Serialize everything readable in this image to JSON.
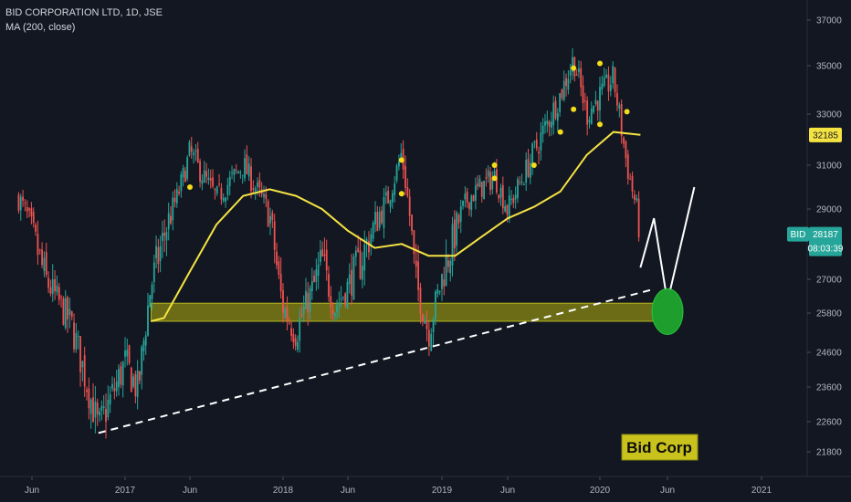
{
  "legend": {
    "symbol_line": "BID CORPORATION LTD, 1D, JSE",
    "indicator_line": "MA (200, close)"
  },
  "colors": {
    "background": "#131722",
    "up": "#26a69a",
    "down": "#ef5350",
    "ma": "#f5e342",
    "support_zone": "#8a8a12",
    "projection": "#ffffff",
    "target_circle": "#1e9e2c",
    "note_box": "#c9c21c",
    "last_price_tag": "#26a69a"
  },
  "chart_data": {
    "type": "candlestick",
    "title": "BID CORPORATION LTD, 1D, JSE",
    "x_ticks": [
      "Jun",
      "2017",
      "Jun",
      "2018",
      "Jun",
      "2019",
      "Jun",
      "2020",
      "Jun",
      "2021"
    ],
    "x_range": [
      "2016-05",
      "2021-03"
    ],
    "y_ticks": [
      21800,
      22600,
      23600,
      24600,
      25800,
      27000,
      28000,
      29000,
      31000,
      33000,
      35000,
      37000
    ],
    "y_range": [
      21200,
      37800
    ],
    "price_anchors": [
      {
        "date": "2016-05",
        "close": 29500
      },
      {
        "date": "2016-07",
        "close": 27000
      },
      {
        "date": "2016-09",
        "close": 25400
      },
      {
        "date": "2016-11",
        "close": 22400
      },
      {
        "date": "2017-01",
        "close": 24300
      },
      {
        "date": "2017-02",
        "close": 23500
      },
      {
        "date": "2017-03",
        "close": 26800
      },
      {
        "date": "2017-05",
        "close": 29500
      },
      {
        "date": "2017-06",
        "close": 31500
      },
      {
        "date": "2017-08",
        "close": 29500
      },
      {
        "date": "2017-10",
        "close": 31000
      },
      {
        "date": "2017-12",
        "close": 28800
      },
      {
        "date": "2018-01",
        "close": 26000
      },
      {
        "date": "2018-02",
        "close": 25200
      },
      {
        "date": "2018-04",
        "close": 27500
      },
      {
        "date": "2018-05",
        "close": 26000
      },
      {
        "date": "2018-07",
        "close": 27500
      },
      {
        "date": "2018-09",
        "close": 29500
      },
      {
        "date": "2018-10",
        "close": 31500
      },
      {
        "date": "2018-11",
        "close": 27000
      },
      {
        "date": "2018-12",
        "close": 25200
      },
      {
        "date": "2019-01",
        "close": 27000
      },
      {
        "date": "2019-03",
        "close": 29500
      },
      {
        "date": "2019-05",
        "close": 30500
      },
      {
        "date": "2019-06",
        "close": 29000
      },
      {
        "date": "2019-08",
        "close": 31500
      },
      {
        "date": "2019-10",
        "close": 33800
      },
      {
        "date": "2019-11",
        "close": 35300
      },
      {
        "date": "2019-12",
        "close": 33000
      },
      {
        "date": "2020-02",
        "close": 34500
      },
      {
        "date": "2020-03",
        "close": 31000
      },
      {
        "date": "2020-04",
        "close": 28187
      }
    ],
    "moving_average": {
      "name": "MA (200, close)",
      "points": [
        {
          "date": "2017-03",
          "value": 25550
        },
        {
          "date": "2017-04",
          "value": 25650
        },
        {
          "date": "2017-06",
          "value": 27200
        },
        {
          "date": "2017-08",
          "value": 28500
        },
        {
          "date": "2017-10",
          "value": 29600
        },
        {
          "date": "2017-12",
          "value": 29900
        },
        {
          "date": "2018-02",
          "value": 29600
        },
        {
          "date": "2018-04",
          "value": 29000
        },
        {
          "date": "2018-06",
          "value": 28300
        },
        {
          "date": "2018-08",
          "value": 27800
        },
        {
          "date": "2018-10",
          "value": 27900
        },
        {
          "date": "2018-12",
          "value": 27600
        },
        {
          "date": "2019-02",
          "value": 27600
        },
        {
          "date": "2019-04",
          "value": 28100
        },
        {
          "date": "2019-06",
          "value": 28700
        },
        {
          "date": "2019-08",
          "value": 29100
        },
        {
          "date": "2019-10",
          "value": 29800
        },
        {
          "date": "2019-12",
          "value": 31400
        },
        {
          "date": "2020-02",
          "value": 32300
        },
        {
          "date": "2020-04",
          "value": 32185
        }
      ]
    },
    "support_zone": {
      "from": "2017-03",
      "to": "2020-06",
      "low": 25550,
      "high": 26150
    },
    "trendline": {
      "from": {
        "date": "2016-11",
        "value": 22300
      },
      "to": {
        "date": "2020-05",
        "value": 26650
      }
    },
    "projection_path": [
      {
        "date": "2020-04",
        "value": 27300
      },
      {
        "date": "2020-05",
        "value": 28700
      },
      {
        "date": "2020-06",
        "value": 26200
      },
      {
        "date": "2020-08",
        "value": 30000
      }
    ],
    "target": {
      "date": "2020-06",
      "value": 25850
    },
    "signal_dots": [
      {
        "date": "2017-06",
        "value": 30000
      },
      {
        "date": "2018-10",
        "value": 29700
      },
      {
        "date": "2018-10",
        "value": 31200
      },
      {
        "date": "2019-05",
        "value": 30400
      },
      {
        "date": "2019-05",
        "value": 31000
      },
      {
        "date": "2019-08",
        "value": 31000
      },
      {
        "date": "2019-10",
        "value": 32300
      },
      {
        "date": "2019-11",
        "value": 33200
      },
      {
        "date": "2019-11",
        "value": 34900
      },
      {
        "date": "2020-01",
        "value": 35100
      },
      {
        "date": "2020-01",
        "value": 32600
      },
      {
        "date": "2020-03",
        "value": 33100
      }
    ],
    "annotation": "Bid Corp",
    "ma_tag": "32185",
    "last_price_tag": {
      "symbol": "BID",
      "price": "28187",
      "countdown": "08:03:39"
    }
  }
}
